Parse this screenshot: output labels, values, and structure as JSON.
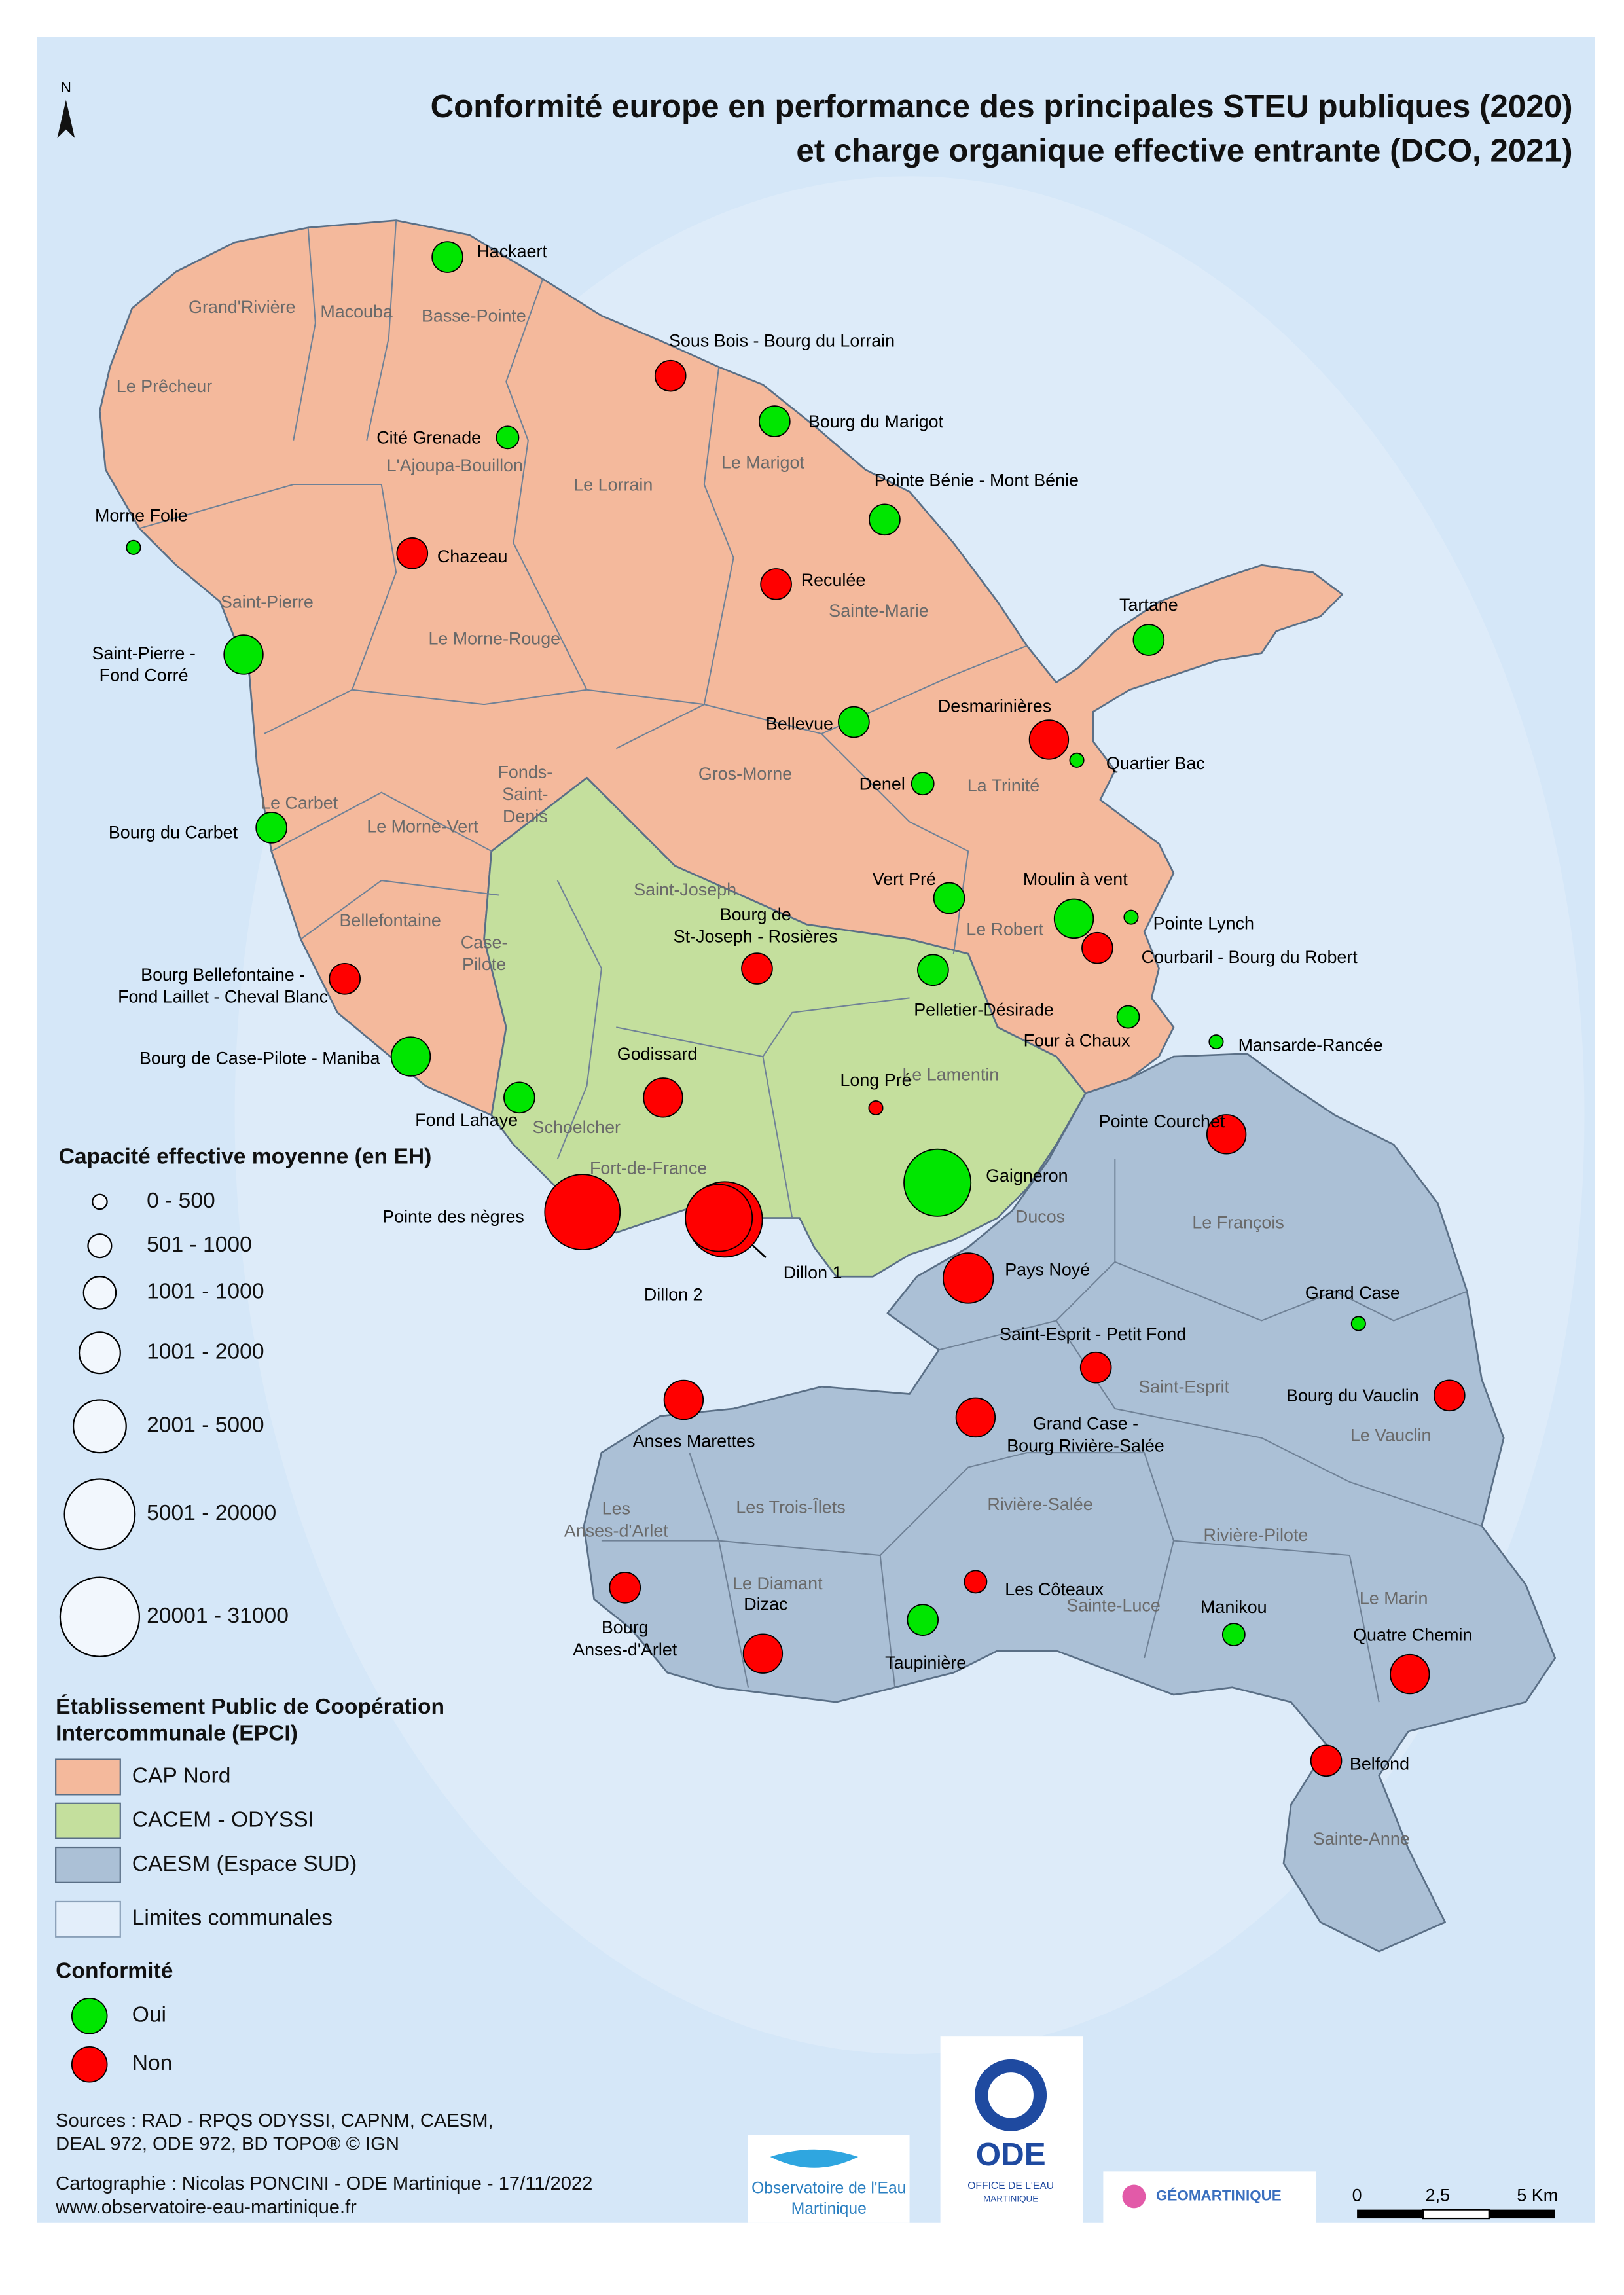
{
  "title": [
    "Conformité europe en performance des principales STEU publiques (2020)",
    "et charge organique effective entrante (DCO, 2021)"
  ],
  "north": "N",
  "communes": [
    [
      "Grand'Rivière"
    ],
    [
      "Macouba"
    ],
    [
      "Basse-Pointe"
    ],
    [
      "Le Prêcheur"
    ],
    [
      "L'Ajoupa-Bouillon"
    ],
    [
      "Le Lorrain"
    ],
    [
      "Le Marigot"
    ],
    [
      "Saint-Pierre"
    ],
    [
      "Le Morne-Rouge"
    ],
    [
      "Sainte-Marie"
    ],
    [
      "Gros-Morne"
    ],
    [
      "La Trinité"
    ],
    [
      "Fonds-",
      "Saint-",
      "Denis"
    ],
    [
      "Le Carbet"
    ],
    [
      "Le Morne-Vert"
    ],
    [
      "Bellefontaine"
    ],
    [
      "Case-",
      "Pilote"
    ],
    [
      "Saint-Joseph"
    ],
    [
      "Le Robert"
    ],
    [
      "Le Lamentin"
    ],
    [
      "Schoelcher"
    ],
    [
      "Fort-de-France"
    ],
    [
      "Ducos"
    ],
    [
      "Le François"
    ],
    [
      "Saint-Esprit"
    ],
    [
      "Le Vauclin"
    ],
    [
      "Rivière-Salée"
    ],
    [
      "Les Trois-Îlets"
    ],
    [
      "Les",
      "Anses-d'Arlet"
    ],
    [
      "Le Diamant"
    ],
    [
      "Sainte-Luce"
    ],
    [
      "Rivière-Pilote"
    ],
    [
      "Le Marin"
    ],
    [
      "Sainte-Anne"
    ]
  ],
  "stations": [
    {
      "label": [
        "Hackaert"
      ],
      "conformity": "Oui",
      "capacity": "1001 - 1000"
    },
    {
      "label": [
        "Sous Bois - Bourg du Lorrain"
      ],
      "conformity": "Non",
      "capacity": "1001 - 1000"
    },
    {
      "label": [
        "Bourg du Marigot"
      ],
      "conformity": "Oui",
      "capacity": "1001 - 1000"
    },
    {
      "label": [
        "Cité Grenade"
      ],
      "conformity": "Oui",
      "capacity": "501 - 1000"
    },
    {
      "label": [
        "Pointe Bénie - Mont Bénie"
      ],
      "conformity": "Oui",
      "capacity": "1001 - 1000"
    },
    {
      "label": [
        "Morne Folie"
      ],
      "conformity": "Oui",
      "capacity": "0 - 500"
    },
    {
      "label": [
        "Chazeau"
      ],
      "conformity": "Non",
      "capacity": "1001 - 1000"
    },
    {
      "label": [
        "Reculée"
      ],
      "conformity": "Non",
      "capacity": "1001 - 1000"
    },
    {
      "label": [
        "Tartane"
      ],
      "conformity": "Oui",
      "capacity": "1001 - 1000"
    },
    {
      "label": [
        "Saint-Pierre -",
        "Fond Corré"
      ],
      "conformity": "Oui",
      "capacity": "1001 - 2000"
    },
    {
      "label": [
        "Bellevue"
      ],
      "conformity": "Oui",
      "capacity": "1001 - 1000"
    },
    {
      "label": [
        "Desmarinières"
      ],
      "conformity": "Non",
      "capacity": "1001 - 2000"
    },
    {
      "label": [
        "Quartier Bac"
      ],
      "conformity": "Oui",
      "capacity": "0 - 500"
    },
    {
      "label": [
        "Denel"
      ],
      "conformity": "Oui",
      "capacity": "501 - 1000"
    },
    {
      "label": [
        "Bourg du Carbet"
      ],
      "conformity": "Oui",
      "capacity": "1001 - 1000"
    },
    {
      "label": [
        "Vert Pré"
      ],
      "conformity": "Oui",
      "capacity": "1001 - 1000"
    },
    {
      "label": [
        "Moulin à vent"
      ],
      "conformity": "Oui",
      "capacity": "1001 - 2000"
    },
    {
      "label": [
        "Pointe Lynch"
      ],
      "conformity": "Oui",
      "capacity": "0 - 500"
    },
    {
      "label": [
        "Bourg de",
        "St-Joseph - Rosières"
      ],
      "conformity": "Non",
      "capacity": "1001 - 1000"
    },
    {
      "label": [
        "Courbaril - Bourg du Robert"
      ],
      "conformity": "Non",
      "capacity": "1001 - 1000"
    },
    {
      "label": [
        "Pelletier-Désirade"
      ],
      "conformity": "Oui",
      "capacity": "1001 - 1000"
    },
    {
      "label": [
        "Bourg Bellefontaine -",
        "Fond Laillet - Cheval Blanc"
      ],
      "conformity": "Non",
      "capacity": "1001 - 1000"
    },
    {
      "label": [
        "Four à Chaux"
      ],
      "conformity": "Oui",
      "capacity": "501 - 1000"
    },
    {
      "label": [
        "Mansarde-Rancée"
      ],
      "conformity": "Oui",
      "capacity": "0 - 500"
    },
    {
      "label": [
        "Bourg de Case-Pilote - Maniba"
      ],
      "conformity": "Oui",
      "capacity": "1001 - 2000"
    },
    {
      "label": [
        "Godissard"
      ],
      "conformity": "Non",
      "capacity": "1001 - 2000"
    },
    {
      "label": [
        "Long Pré"
      ],
      "conformity": "Non",
      "capacity": "0 - 500"
    },
    {
      "label": [
        "Fond Lahaye"
      ],
      "conformity": "Oui",
      "capacity": "1001 - 1000"
    },
    {
      "label": [
        "Pointe Courchet"
      ],
      "conformity": "Non",
      "capacity": "1001 - 2000"
    },
    {
      "label": [
        "Pointe des nègres"
      ],
      "conformity": "Non",
      "capacity": "20001 - 31000"
    },
    {
      "label": [
        "Gaigneron"
      ],
      "conformity": "Oui",
      "capacity": "5001 - 20000"
    },
    {
      "label": [
        "Dillon 1"
      ],
      "conformity": "Non",
      "capacity": "20001 - 31000"
    },
    {
      "label": [
        "Dillon 2"
      ],
      "conformity": "Non",
      "capacity": "5001 - 20000"
    },
    {
      "label": [
        "Pays Noyé"
      ],
      "conformity": "Non",
      "capacity": "2001 - 5000"
    },
    {
      "label": [
        "Grand Case"
      ],
      "conformity": "Oui",
      "capacity": "0 - 500"
    },
    {
      "label": [
        "Saint-Esprit - Petit Fond"
      ],
      "conformity": "Non",
      "capacity": "1001 - 1000"
    },
    {
      "label": [
        "Bourg du Vauclin"
      ],
      "conformity": "Non",
      "capacity": "1001 - 1000"
    },
    {
      "label": [
        "Anses Marettes"
      ],
      "conformity": "Non",
      "capacity": "1001 - 2000"
    },
    {
      "label": [
        "Grand Case -",
        "Bourg Rivière-Salée"
      ],
      "conformity": "Non",
      "capacity": "1001 - 2000"
    },
    {
      "label": [
        "Bourg",
        "Anses-d'Arlet"
      ],
      "conformity": "Non",
      "capacity": "1001 - 1000"
    },
    {
      "label": [
        "Les Côteaux"
      ],
      "conformity": "Non",
      "capacity": "501 - 1000"
    },
    {
      "label": [
        "Dizac"
      ],
      "conformity": "Non",
      "capacity": "1001 - 2000"
    },
    {
      "label": [
        "Taupinière"
      ],
      "conformity": "Oui",
      "capacity": "1001 - 1000"
    },
    {
      "label": [
        "Manikou"
      ],
      "conformity": "Oui",
      "capacity": "501 - 1000"
    },
    {
      "label": [
        "Quatre Chemin"
      ],
      "conformity": "Non",
      "capacity": "1001 - 2000"
    },
    {
      "label": [
        "Belfond"
      ],
      "conformity": "Non",
      "capacity": "1001 - 1000"
    }
  ],
  "legend": {
    "capacity": {
      "title": "Capacité effective moyenne (en EH)",
      "classes": [
        "0 - 500",
        "501 - 1000",
        "1001 - 1000",
        "1001 - 2000",
        "2001 - 5000",
        "5001 - 20000",
        "20001 - 31000"
      ]
    },
    "epci": {
      "title": [
        "Établissement Public de Coopération",
        "Intercommunale (EPCI)"
      ],
      "items": [
        {
          "label": "CAP Nord",
          "color": "#f4b99c"
        },
        {
          "label": "CACEM - ODYSSI",
          "color": "#c4df9d"
        },
        {
          "label": "CAESM (Espace SUD)",
          "color": "#abc0d6"
        }
      ],
      "limits": {
        "label": "Limites communales",
        "color": "#e3eefa"
      }
    },
    "conformity": {
      "title": "Conformité",
      "items": [
        {
          "label": "Oui",
          "color": "#00e600"
        },
        {
          "label": "Non",
          "color": "#ff0000"
        }
      ]
    }
  },
  "sources": [
    "Sources : RAD - RPQS ODYSSI, CAPNM, CAESM,",
    "DEAL 972, ODE 972, BD TOPO® © IGN"
  ],
  "credits": "Cartographie : Nicolas PONCINI - ODE Martinique - 17/11/2022",
  "url": "www.observatoire-eau-martinique.fr",
  "logos": {
    "observatoire": [
      "Observatoire de l'Eau",
      "Martinique"
    ],
    "ode": [
      "ODE",
      "OFFICE DE L'EAU",
      "MARTINIQUE"
    ],
    "geo": "GÉOMARTINIQUE"
  },
  "scale": [
    "0",
    "2,5",
    "5 Km"
  ]
}
